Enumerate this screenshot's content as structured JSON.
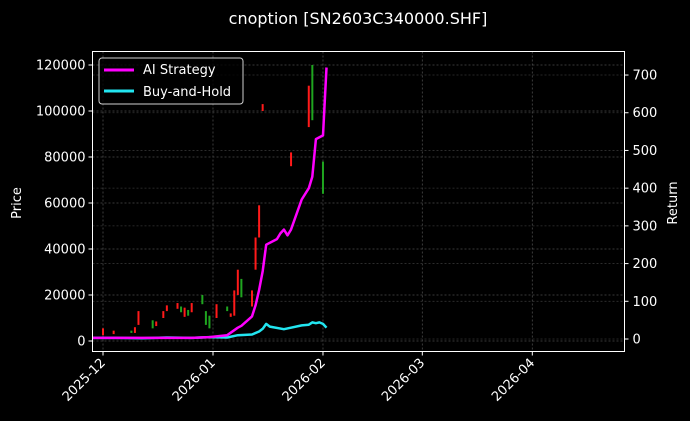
{
  "chart_data": {
    "type": "line",
    "title": "cnoption [SN2603C340000.SHF]",
    "xlabel": "",
    "ylabel": "Price",
    "y2label": "Return",
    "ylim": [
      -3000,
      125000
    ],
    "y2lim": [
      -12,
      760
    ],
    "xlim": [
      "2025-11-28",
      "2026-04-27"
    ],
    "grid": true,
    "legend_position": "upper left",
    "x_ticks": [
      "2025-12",
      "2026-01",
      "2026-02",
      "2026-03",
      "2026-04"
    ],
    "y_ticks": [
      0,
      20000,
      40000,
      60000,
      80000,
      100000,
      120000
    ],
    "y2_ticks": [
      0,
      100,
      200,
      300,
      400,
      500,
      600,
      700
    ],
    "series": [
      {
        "name": "AI Strategy",
        "axis": "right",
        "color": "#ff00ff",
        "points": [
          [
            "2025-11-28",
            3
          ],
          [
            "2025-12-05",
            3
          ],
          [
            "2025-12-12",
            3
          ],
          [
            "2025-12-19",
            3
          ],
          [
            "2025-12-26",
            3
          ],
          [
            "2025-12-31",
            5
          ],
          [
            "2026-01-05",
            10
          ],
          [
            "2026-01-08",
            30
          ],
          [
            "2026-01-09",
            35
          ],
          [
            "2026-01-12",
            60
          ],
          [
            "2026-01-13",
            90
          ],
          [
            "2026-01-14",
            130
          ],
          [
            "2026-01-15",
            180
          ],
          [
            "2026-01-16",
            250
          ],
          [
            "2026-01-19",
            265
          ],
          [
            "2026-01-20",
            280
          ],
          [
            "2026-01-21",
            290
          ],
          [
            "2026-01-22",
            275
          ],
          [
            "2026-01-23",
            290
          ],
          [
            "2026-01-26",
            370
          ],
          [
            "2026-01-28",
            400
          ],
          [
            "2026-01-29",
            430
          ],
          [
            "2026-01-30",
            530
          ],
          [
            "2026-02-01",
            540
          ],
          [
            "2026-02-02",
            720
          ]
        ]
      },
      {
        "name": "Buy-and-Hold",
        "axis": "right",
        "color": "#22e5f0",
        "points": [
          [
            "2025-11-28",
            3
          ],
          [
            "2025-12-05",
            3
          ],
          [
            "2025-12-12",
            2
          ],
          [
            "2025-12-19",
            4
          ],
          [
            "2025-12-26",
            3
          ],
          [
            "2025-12-31",
            5
          ],
          [
            "2026-01-05",
            4
          ],
          [
            "2026-01-08",
            10
          ],
          [
            "2026-01-12",
            12
          ],
          [
            "2026-01-14",
            20
          ],
          [
            "2026-01-15",
            27
          ],
          [
            "2026-01-16",
            40
          ],
          [
            "2026-01-17",
            33
          ],
          [
            "2026-01-21",
            26
          ],
          [
            "2026-01-23",
            30
          ],
          [
            "2026-01-26",
            36
          ],
          [
            "2026-01-28",
            38
          ],
          [
            "2026-01-29",
            44
          ],
          [
            "2026-01-30",
            42
          ],
          [
            "2026-01-31",
            44
          ],
          [
            "2026-02-01",
            40
          ],
          [
            "2026-02-02",
            30
          ]
        ]
      }
    ],
    "candles": {
      "axis": "left",
      "up_color": "#1fa51f",
      "down_color": "#ff1a1a",
      "items": [
        {
          "date": "2025-12-01",
          "low": 2500,
          "high": 5500,
          "dir": "down"
        },
        {
          "date": "2025-12-04",
          "low": 3000,
          "high": 4500,
          "dir": "down"
        },
        {
          "date": "2025-12-09",
          "low": 3500,
          "high": 4500,
          "dir": "up"
        },
        {
          "date": "2025-12-10",
          "low": 3500,
          "high": 6000,
          "dir": "down"
        },
        {
          "date": "2025-12-11",
          "low": 7000,
          "high": 13000,
          "dir": "down"
        },
        {
          "date": "2025-12-15",
          "low": 5500,
          "high": 9000,
          "dir": "up"
        },
        {
          "date": "2025-12-16",
          "low": 6500,
          "high": 8500,
          "dir": "down"
        },
        {
          "date": "2025-12-18",
          "low": 10000,
          "high": 13000,
          "dir": "down"
        },
        {
          "date": "2025-12-19",
          "low": 13000,
          "high": 15500,
          "dir": "down"
        },
        {
          "date": "2025-12-22",
          "low": 14000,
          "high": 16500,
          "dir": "down"
        },
        {
          "date": "2025-12-23",
          "low": 12500,
          "high": 15000,
          "dir": "up"
        },
        {
          "date": "2025-12-24",
          "low": 10500,
          "high": 14500,
          "dir": "down"
        },
        {
          "date": "2025-12-25",
          "low": 11000,
          "high": 13500,
          "dir": "up"
        },
        {
          "date": "2025-12-26",
          "low": 12500,
          "high": 16500,
          "dir": "down"
        },
        {
          "date": "2025-12-29",
          "low": 16000,
          "high": 20000,
          "dir": "up"
        },
        {
          "date": "2025-12-30",
          "low": 7000,
          "high": 13000,
          "dir": "up"
        },
        {
          "date": "2025-12-31",
          "low": 5500,
          "high": 11000,
          "dir": "up"
        },
        {
          "date": "2026-01-02",
          "low": 10000,
          "high": 16000,
          "dir": "down"
        },
        {
          "date": "2026-01-05",
          "low": 13000,
          "high": 15000,
          "dir": "up"
        },
        {
          "date": "2026-01-06",
          "low": 10500,
          "high": 12000,
          "dir": "down"
        },
        {
          "date": "2026-01-07",
          "low": 11000,
          "high": 22000,
          "dir": "down"
        },
        {
          "date": "2026-01-08",
          "low": 20000,
          "high": 31000,
          "dir": "down"
        },
        {
          "date": "2026-01-09",
          "low": 19000,
          "high": 27000,
          "dir": "up"
        },
        {
          "date": "2026-01-12",
          "low": 15000,
          "high": 22000,
          "dir": "down"
        },
        {
          "date": "2026-01-13",
          "low": 31000,
          "high": 45000,
          "dir": "down"
        },
        {
          "date": "2026-01-14",
          "low": 45000,
          "high": 59000,
          "dir": "down"
        },
        {
          "date": "2026-01-15",
          "low": 100000,
          "high": 103000,
          "dir": "down"
        },
        {
          "date": "2026-01-23",
          "low": 76000,
          "high": 82000,
          "dir": "down"
        },
        {
          "date": "2026-01-28",
          "low": 93000,
          "high": 111000,
          "dir": "down"
        },
        {
          "date": "2026-01-29",
          "low": 96000,
          "high": 120000,
          "dir": "up"
        },
        {
          "date": "2026-02-01",
          "low": 64000,
          "high": 78000,
          "dir": "up"
        }
      ]
    }
  },
  "figure": {
    "background": "#000000",
    "axes_color": "#ffffff",
    "grid_color": "#4a4a4a"
  }
}
